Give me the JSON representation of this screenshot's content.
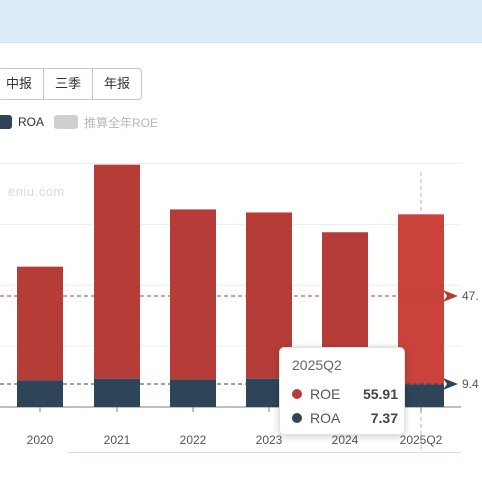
{
  "period_tabs": [
    "中报",
    "三季",
    "年报"
  ],
  "legend": {
    "roa_label": "ROA",
    "projected_label": "推算全年ROE"
  },
  "watermark": "eniu.com",
  "colors": {
    "roe": "#b63c38",
    "roe_highlight": "#c9423c",
    "roa": "#2e4459",
    "projected": "#cfcfcf",
    "grid": "#e9eef4"
  },
  "markers": {
    "roe_marker": "47.",
    "roa_marker": "9.4"
  },
  "tooltip": {
    "title": "2025Q2",
    "rows": [
      {
        "name": "ROE",
        "value": "55.91",
        "color": "#b63c38"
      },
      {
        "name": "ROA",
        "value": "7.37",
        "color": "#2e4459"
      }
    ]
  },
  "chart_data": {
    "type": "bar",
    "stacked": true,
    "categories": [
      "2020",
      "2021",
      "2022",
      "2023",
      "2024",
      "2025Q2"
    ],
    "series": [
      {
        "name": "ROE",
        "values": [
          37.3,
          70.3,
          55.9,
          54.6,
          48.1,
          55.91
        ]
      },
      {
        "name": "ROA",
        "values": [
          8.8,
          9.3,
          9.0,
          9.3,
          9.3,
          7.37
        ]
      }
    ],
    "reference_lines": [
      {
        "series": "ROE",
        "value": 47.5,
        "style": "dashed"
      },
      {
        "series": "ROA",
        "value": 9.4,
        "style": "dashed"
      }
    ],
    "ylim": [
      0,
      90
    ],
    "grid": true
  }
}
